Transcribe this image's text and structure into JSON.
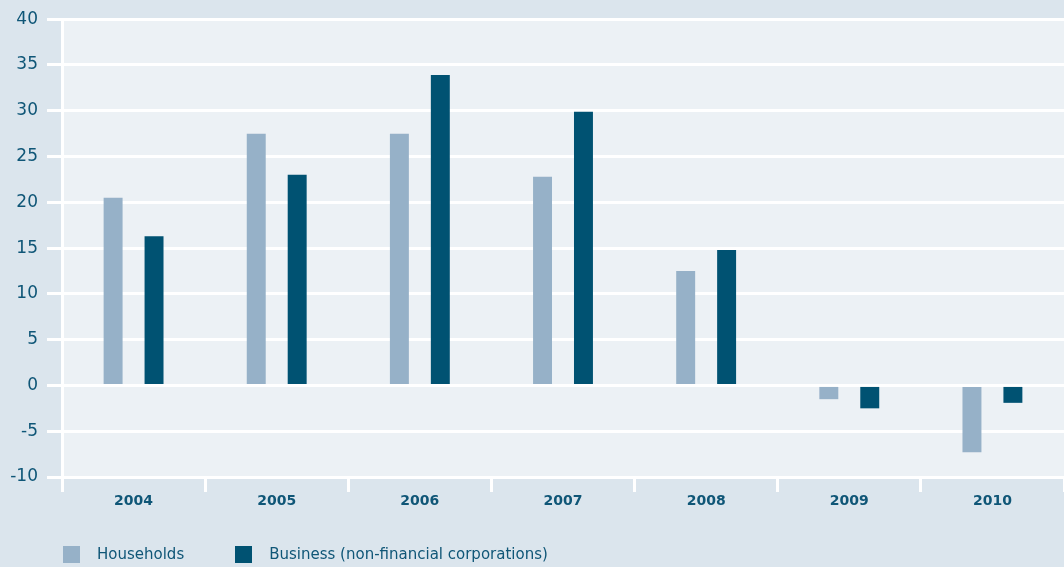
{
  "chart_data": {
    "type": "bar",
    "categories": [
      "2004",
      "2005",
      "2006",
      "2007",
      "2008",
      "2009",
      "2010"
    ],
    "series": [
      {
        "name": "Households",
        "color": "#96b1c8",
        "values": [
          20.5,
          27.5,
          27.5,
          22.8,
          12.5,
          -1.5,
          -7.3
        ]
      },
      {
        "name": "Business (non-financial corporations)",
        "color": "#005272",
        "values": [
          16.3,
          23.0,
          33.9,
          29.9,
          14.8,
          -2.5,
          -1.9
        ]
      }
    ],
    "ylim": [
      -10,
      40
    ],
    "yticks": [
      -10,
      -5,
      0,
      5,
      10,
      15,
      20,
      25,
      30,
      35,
      40
    ],
    "grid": "y",
    "legend": "bottom left"
  }
}
